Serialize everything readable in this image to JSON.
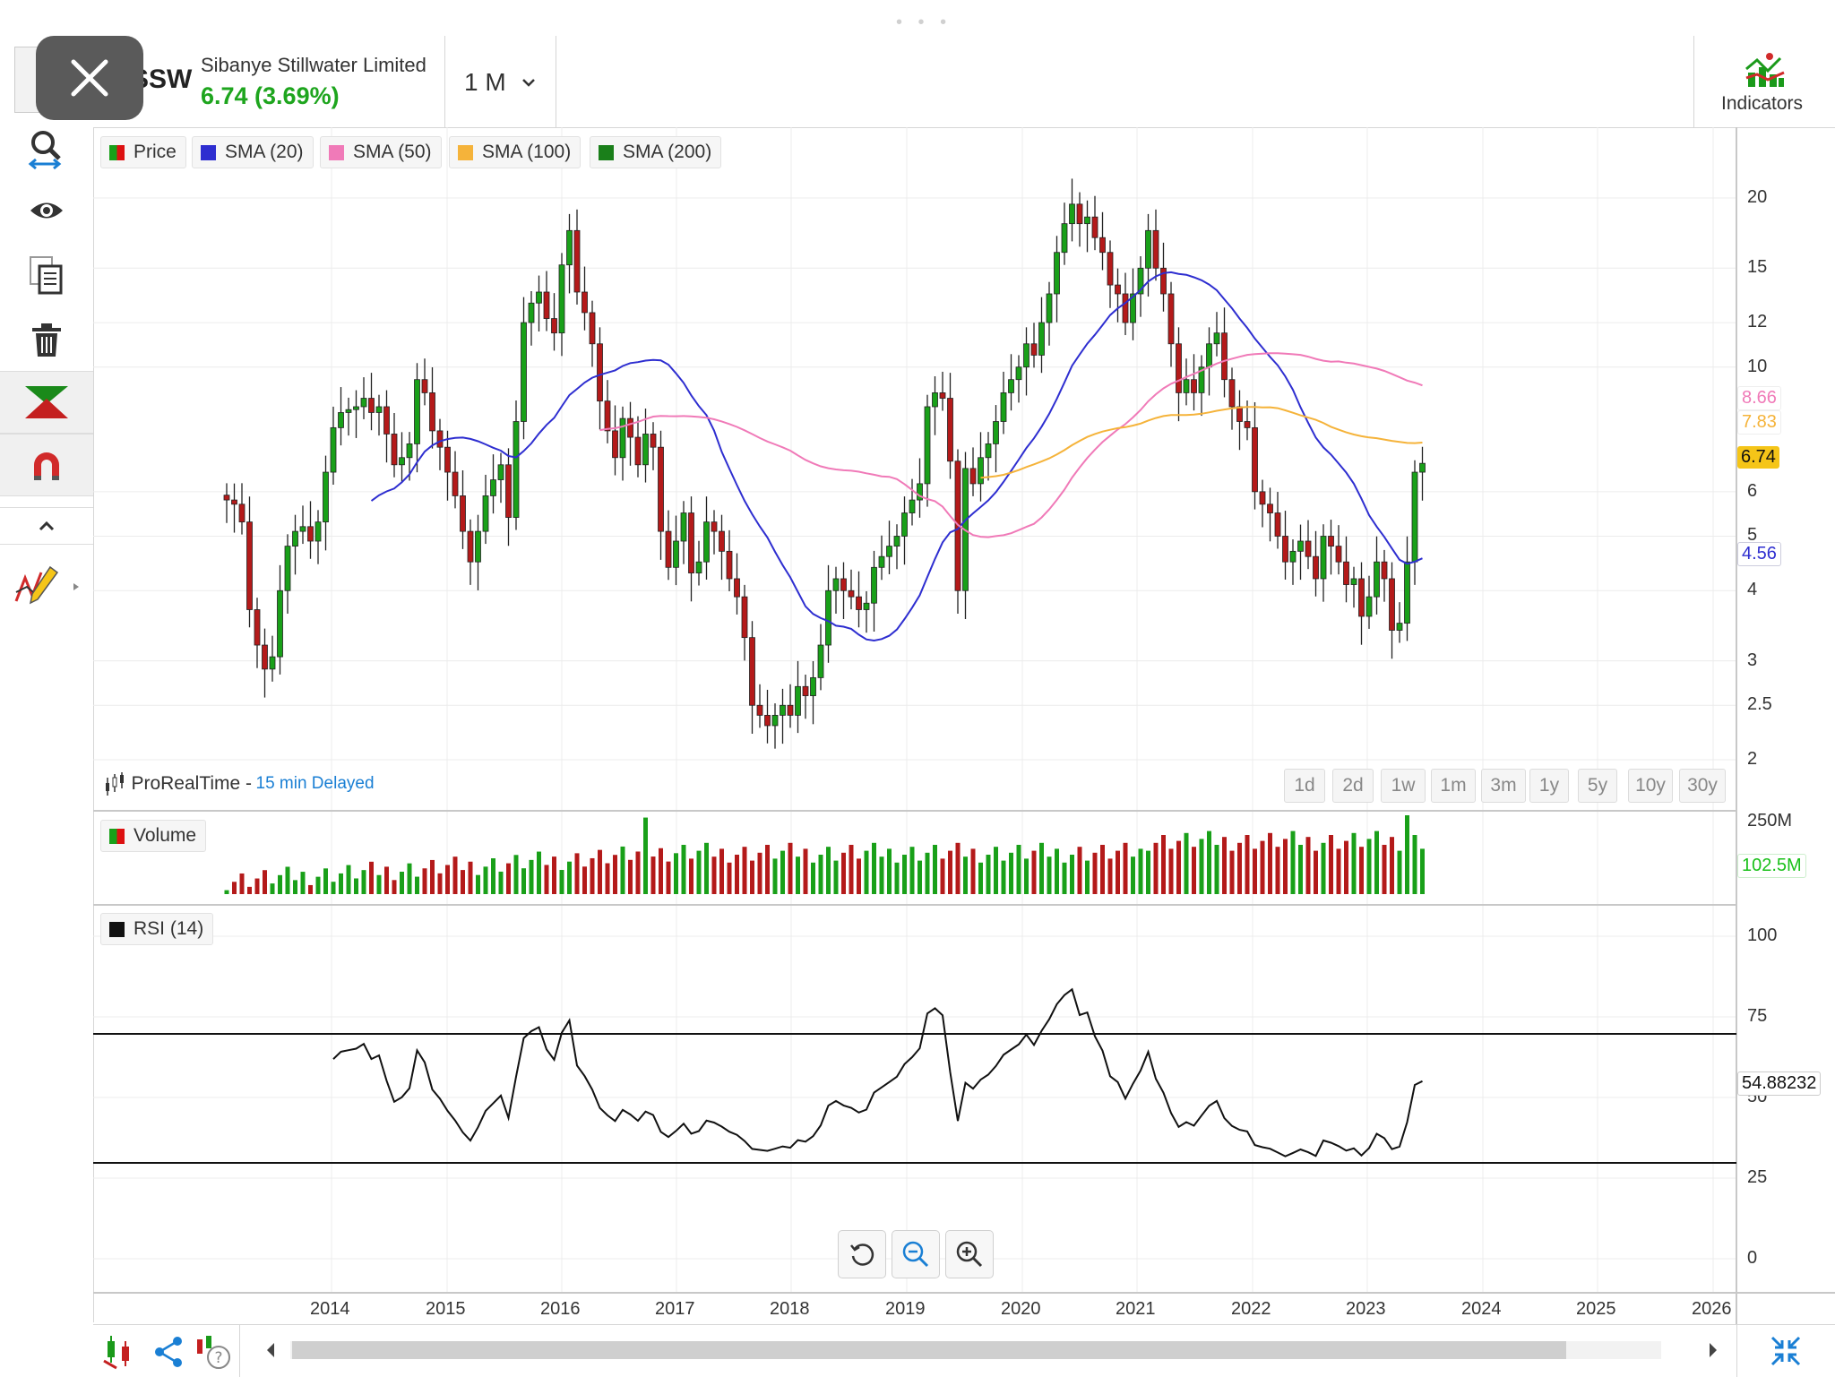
{
  "header": {
    "symbol": "SSW",
    "company_name": "Sibanye Stillwater Limited",
    "price_change": "6.74 (3.69%)",
    "timeframe": "1 M",
    "indicators_label": "Indicators"
  },
  "legend": {
    "price": "Price",
    "sma20": "SMA (20)",
    "sma50": "SMA (50)",
    "sma100": "SMA (100)",
    "sma200": "SMA (200)",
    "volume": "Volume",
    "rsi": "RSI (14)"
  },
  "source": {
    "provider": "ProRealTime -",
    "delay": "15 min Delayed"
  },
  "ranges": [
    "1d",
    "2d",
    "1w",
    "1m",
    "3m",
    "1y",
    "5y",
    "10y",
    "30y"
  ],
  "price_axis_ticks": [
    "20",
    "15",
    "12",
    "10",
    "6",
    "5",
    "4",
    "3",
    "2.5",
    "2"
  ],
  "value_labels": {
    "sma50": "8.66",
    "sma100": "7.83",
    "last_price": "6.74",
    "sma20": "4.56",
    "volume_max": "250M",
    "volume_last": "102.5M",
    "rsi_last": "54.88232"
  },
  "rsi_axis_ticks": [
    "100",
    "75",
    "50",
    "25",
    "0"
  ],
  "year_labels": [
    "2014",
    "2015",
    "2016",
    "2017",
    "2018",
    "2019",
    "2020",
    "2021",
    "2022",
    "2023",
    "2024",
    "2025",
    "2026"
  ],
  "colors": {
    "up": "#19a019",
    "down": "#b41a1a",
    "sma20": "#2e2ed0",
    "sma50": "#f07ab8",
    "sma100": "#f5b33a",
    "sma200": "#1a7f1a",
    "accent": "#1a7fd4"
  },
  "chart_data": {
    "type": "candlestick",
    "interval": "monthly",
    "y_scale": "log",
    "price_range": [
      1.9,
      22
    ],
    "closes": [
      5.8,
      5.7,
      5.3,
      3.7,
      3.2,
      2.9,
      3.05,
      4.0,
      4.8,
      5.1,
      5.2,
      4.9,
      5.3,
      6.5,
      7.8,
      8.3,
      8.4,
      8.5,
      8.8,
      8.3,
      8.5,
      7.6,
      6.7,
      6.9,
      7.3,
      9.5,
      9.0,
      7.7,
      7.2,
      6.5,
      5.9,
      5.1,
      4.5,
      5.1,
      5.9,
      6.3,
      6.7,
      5.4,
      8.0,
      12.0,
      13.0,
      13.6,
      12.2,
      11.5,
      15.2,
      17.5,
      13.6,
      12.5,
      11.0,
      8.7,
      7.7,
      6.9,
      8.1,
      7.5,
      6.7,
      7.6,
      7.2,
      5.1,
      4.4,
      4.9,
      5.5,
      4.3,
      4.5,
      5.3,
      5.1,
      4.7,
      4.2,
      3.9,
      3.3,
      2.5,
      2.4,
      2.3,
      2.4,
      2.5,
      2.4,
      2.7,
      2.6,
      2.8,
      3.2,
      4.0,
      4.2,
      4.0,
      3.9,
      3.7,
      3.8,
      4.4,
      4.6,
      4.8,
      5.0,
      5.5,
      5.8,
      6.2,
      8.5,
      9.0,
      8.8,
      6.8,
      4.0,
      6.6,
      6.2,
      6.9,
      7.3,
      8.0,
      9.0,
      9.5,
      10.0,
      11.0,
      10.5,
      12.0,
      13.5,
      16.0,
      18.0,
      19.5,
      18.0,
      18.5,
      17.0,
      16.0,
      14.0,
      13.5,
      12.0,
      13.5,
      15.0,
      17.5,
      15.0,
      13.5,
      11.0,
      9.0,
      9.5,
      9.0,
      10.0,
      11.0,
      11.5,
      9.5,
      8.5,
      8.0,
      7.8,
      6.0,
      5.7,
      5.5,
      5.0,
      4.5,
      4.7,
      4.9,
      4.6,
      4.2,
      5.0,
      4.8,
      4.5,
      4.1,
      4.2,
      3.6,
      3.9,
      4.5,
      4.2,
      3.4,
      3.5,
      4.5,
      6.5,
      6.74
    ],
    "sma20_last": 4.56,
    "sma50_last": 8.66,
    "sma100_last": 7.83,
    "volume_axis_max": "250M",
    "volume_last": "102.5M",
    "rsi_last": 54.88232,
    "rsi_levels": [
      70,
      30
    ],
    "x_axis_years": [
      "2014",
      "2015",
      "2016",
      "2017",
      "2018",
      "2019",
      "2020",
      "2021",
      "2022",
      "2023",
      "2024",
      "2025",
      "2026"
    ]
  }
}
